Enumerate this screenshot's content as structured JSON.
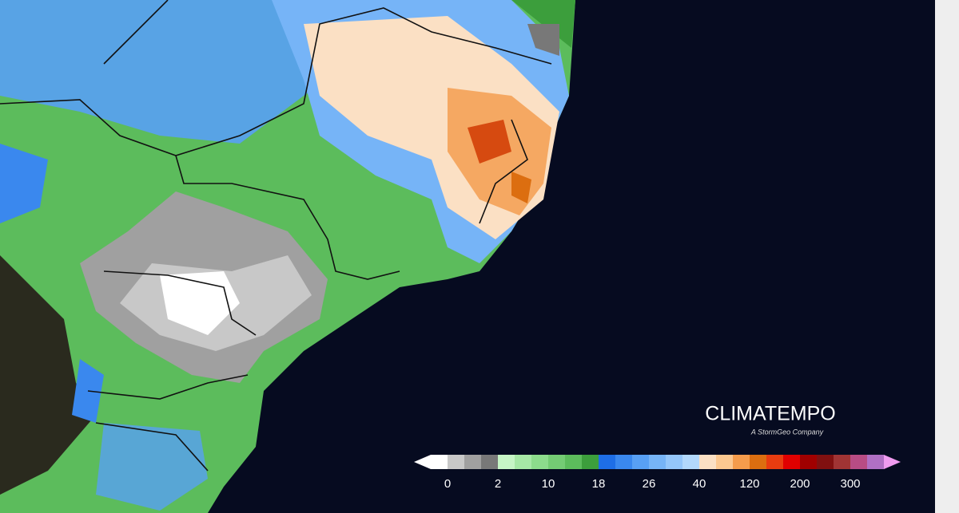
{
  "brand": {
    "name": "CLIMATEMPO",
    "tagline": "A StormGeo Company"
  },
  "legend": {
    "labels": [
      "0",
      "2",
      "10",
      "18",
      "26",
      "40",
      "120",
      "200",
      "300"
    ],
    "colors": [
      "#ffffff",
      "#c8c8c8",
      "#a0a0a0",
      "#787878",
      "#c6f5c6",
      "#a6e8a6",
      "#8cdc8c",
      "#74cc74",
      "#5cbc5c",
      "#3c9e3c",
      "#1e6ee6",
      "#3a88ee",
      "#58a0f4",
      "#76b4f7",
      "#94c6fa",
      "#b2d8fc",
      "#fbe0c4",
      "#fcc890",
      "#f59c4c",
      "#dc6e10",
      "#e83c10",
      "#e00000",
      "#a00000",
      "#801010",
      "#a03434",
      "#b84c84",
      "#b070c4",
      "#f09cf0"
    ]
  }
}
